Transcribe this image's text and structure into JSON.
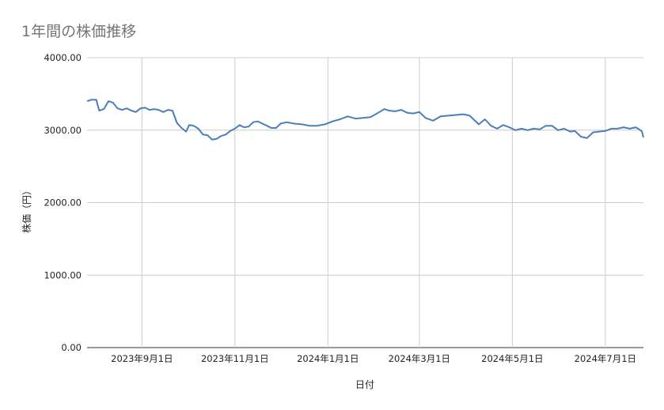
{
  "chart_data": {
    "type": "line",
    "title": "1年間の株価推移",
    "xlabel": "日付",
    "ylabel": "株価（円）",
    "ylim": [
      0,
      4000
    ],
    "yticks": [
      "0.00",
      "1000.00",
      "2000.00",
      "3000.00",
      "4000.00"
    ],
    "xticks": [
      {
        "label": "2023年9月1日",
        "date": "2023-09-01"
      },
      {
        "label": "2023年11月1日",
        "date": "2023-11-01"
      },
      {
        "label": "2024年1月1日",
        "date": "2024-01-01"
      },
      {
        "label": "2024年3月1日",
        "date": "2024-03-01"
      },
      {
        "label": "2024年5月1日",
        "date": "2024-05-01"
      },
      {
        "label": "2024年7月1日",
        "date": "2024-07-01"
      }
    ],
    "xlim": [
      "2023-07-27",
      "2024-07-26"
    ],
    "grid": true,
    "color": "#4a7ebb",
    "series": [
      {
        "x": [
          "2023-07-27",
          "2023-07-30",
          "2023-08-02",
          "2023-08-04",
          "2023-08-07",
          "2023-08-10",
          "2023-08-13",
          "2023-08-16",
          "2023-08-19",
          "2023-08-22",
          "2023-08-25",
          "2023-08-28",
          "2023-08-31",
          "2023-09-03",
          "2023-09-06",
          "2023-09-09",
          "2023-09-12",
          "2023-09-15",
          "2023-09-18",
          "2023-09-21",
          "2023-09-24",
          "2023-09-27",
          "2023-09-30",
          "2023-10-02",
          "2023-10-05",
          "2023-10-08",
          "2023-10-11",
          "2023-10-14",
          "2023-10-17",
          "2023-10-20",
          "2023-10-23",
          "2023-10-26",
          "2023-10-29",
          "2023-11-01",
          "2023-11-04",
          "2023-11-07",
          "2023-11-10",
          "2023-11-13",
          "2023-11-16",
          "2023-11-19",
          "2023-11-22",
          "2023-11-25",
          "2023-11-28",
          "2023-12-01",
          "2023-12-05",
          "2023-12-10",
          "2023-12-15",
          "2023-12-20",
          "2023-12-25",
          "2023-12-30",
          "2024-01-04",
          "2024-01-09",
          "2024-01-14",
          "2024-01-19",
          "2024-01-24",
          "2024-01-29",
          "2024-02-03",
          "2024-02-07",
          "2024-02-10",
          "2024-02-14",
          "2024-02-18",
          "2024-02-22",
          "2024-02-26",
          "2024-03-01",
          "2024-03-05",
          "2024-03-10",
          "2024-03-15",
          "2024-03-20",
          "2024-03-25",
          "2024-03-30",
          "2024-04-03",
          "2024-04-06",
          "2024-04-09",
          "2024-04-13",
          "2024-04-17",
          "2024-04-21",
          "2024-04-25",
          "2024-04-29",
          "2024-05-03",
          "2024-05-07",
          "2024-05-11",
          "2024-05-15",
          "2024-05-19",
          "2024-05-23",
          "2024-05-27",
          "2024-05-31",
          "2024-06-04",
          "2024-06-08",
          "2024-06-11",
          "2024-06-15",
          "2024-06-19",
          "2024-06-23",
          "2024-06-27",
          "2024-07-01",
          "2024-07-05",
          "2024-07-09",
          "2024-07-13",
          "2024-07-17",
          "2024-07-21",
          "2024-07-24",
          "2024-07-25",
          "2024-07-26"
        ],
        "y": [
          3400,
          3420,
          3420,
          3270,
          3290,
          3400,
          3380,
          3300,
          3280,
          3300,
          3270,
          3250,
          3300,
          3310,
          3280,
          3290,
          3280,
          3250,
          3280,
          3270,
          3100,
          3030,
          2980,
          3070,
          3060,
          3020,
          2940,
          2930,
          2870,
          2880,
          2920,
          2940,
          2990,
          3020,
          3070,
          3040,
          3050,
          3110,
          3120,
          3090,
          3060,
          3030,
          3030,
          3090,
          3110,
          3090,
          3080,
          3060,
          3060,
          3080,
          3120,
          3150,
          3190,
          3160,
          3170,
          3180,
          3240,
          3290,
          3270,
          3260,
          3280,
          3240,
          3230,
          3250,
          3170,
          3130,
          3190,
          3200,
          3210,
          3220,
          3200,
          3140,
          3080,
          3150,
          3060,
          3020,
          3070,
          3040,
          3000,
          3020,
          3000,
          3020,
          3010,
          3060,
          3060,
          3000,
          3020,
          2980,
          2990,
          2910,
          2890,
          2970,
          2980,
          2990,
          3020,
          3020,
          3040,
          3020,
          3040,
          3000,
          2980,
          2900
        ]
      }
    ]
  }
}
